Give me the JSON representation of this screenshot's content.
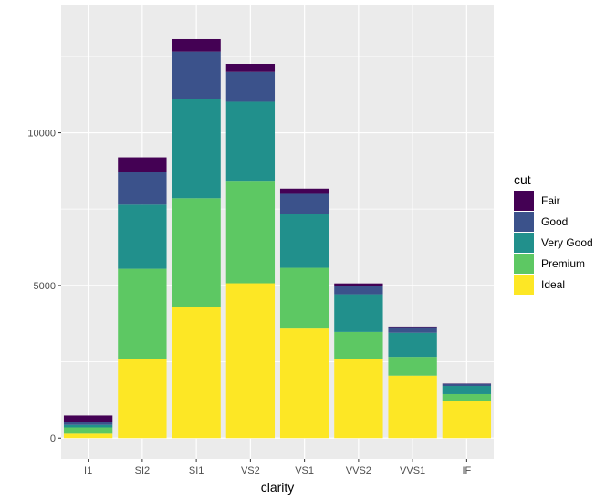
{
  "chart_data": {
    "type": "bar",
    "stacked": true,
    "categories": [
      "I1",
      "SI2",
      "SI1",
      "VS2",
      "VS1",
      "VVS2",
      "VVS1",
      "IF"
    ],
    "series": [
      {
        "name": "Fair",
        "color": "#440154",
        "values": [
          210,
          466,
          408,
          261,
          170,
          69,
          17,
          9
        ]
      },
      {
        "name": "Good",
        "color": "#3B528B",
        "values": [
          96,
          1081,
          1560,
          978,
          648,
          286,
          186,
          71
        ]
      },
      {
        "name": "Very Good",
        "color": "#21908C",
        "values": [
          84,
          2100,
          3240,
          2591,
          1775,
          1235,
          789,
          268
        ]
      },
      {
        "name": "Premium",
        "color": "#5DC863",
        "values": [
          205,
          2949,
          3575,
          3357,
          1989,
          870,
          616,
          230
        ]
      },
      {
        "name": "Ideal",
        "color": "#FDE725",
        "values": [
          146,
          2598,
          4282,
          5071,
          3589,
          2606,
          2047,
          1212
        ]
      }
    ],
    "stack_order": [
      "Ideal",
      "Premium",
      "Very Good",
      "Good",
      "Fair"
    ],
    "xlabel": "clarity",
    "ylabel": "",
    "yticks": [
      0,
      5000,
      10000
    ],
    "ylim": [
      -680,
      14200
    ],
    "grid": true,
    "legend": {
      "title": "cut",
      "placement": "right"
    },
    "background": "#EBEBEB"
  }
}
